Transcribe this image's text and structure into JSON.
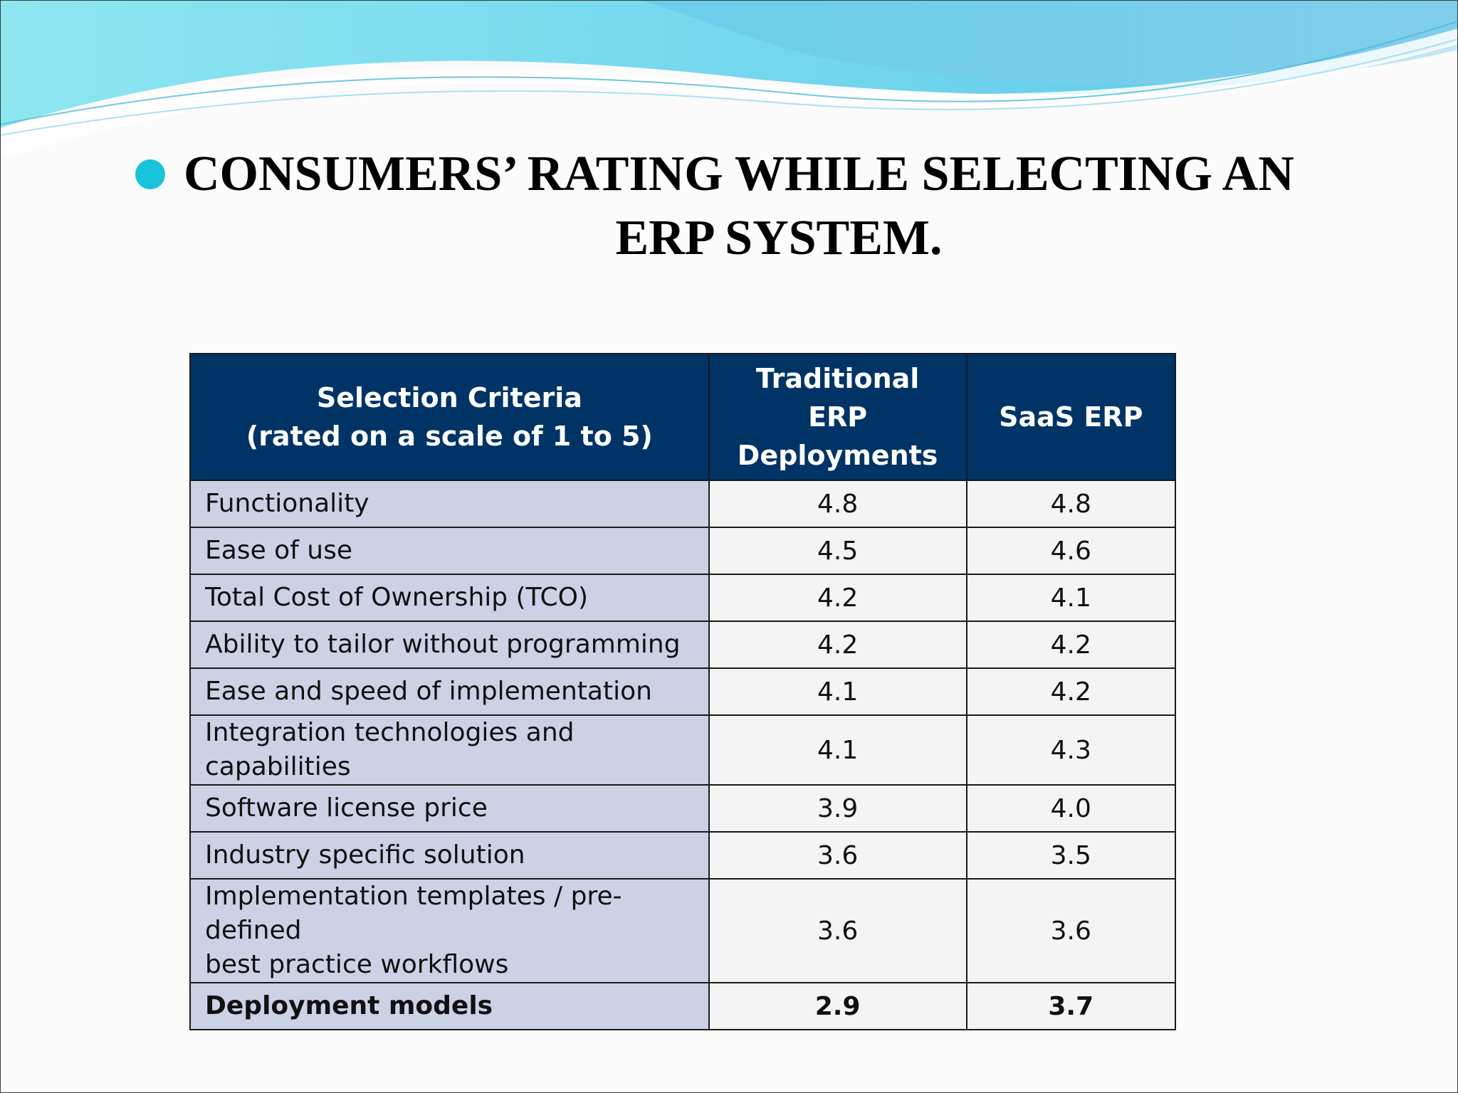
{
  "slide": {
    "title_line1": "CONSUMERS’ RATING WHILE SELECTING AN",
    "title_line2": "ERP SYSTEM.",
    "accent_color": "#19c3da",
    "header_color": "#003466",
    "criteria_cell_color": "#cdd1e6"
  },
  "table": {
    "headers": [
      {
        "line1": "Selection Criteria",
        "line2": "(rated on a scale of 1 to 5)"
      },
      {
        "line1": "Traditional",
        "line2": "ERP",
        "line3": "Deployments"
      },
      {
        "line1": "SaaS ERP"
      }
    ],
    "rows": [
      {
        "criteria": "Functionality",
        "traditional": "4.8",
        "saas": "4.8"
      },
      {
        "criteria": "Ease of use",
        "traditional": "4.5",
        "saas": "4.6"
      },
      {
        "criteria": "Total Cost of Ownership (TCO)",
        "traditional": "4.2",
        "saas": "4.1"
      },
      {
        "criteria": "Ability to tailor without programming",
        "traditional": "4.2",
        "saas": "4.2"
      },
      {
        "criteria": "Ease and speed of implementation",
        "traditional": "4.1",
        "saas": "4.2"
      },
      {
        "criteria": "Integration technologies and capabilities",
        "traditional": "4.1",
        "saas": "4.3"
      },
      {
        "criteria": "Software license price",
        "traditional": "3.9",
        "saas": "4.0"
      },
      {
        "criteria": "Industry specific solution",
        "traditional": "3.6",
        "saas": "3.5"
      },
      {
        "criteria_line1": "Implementation templates / pre-defined",
        "criteria_line2": "best practice workflows",
        "traditional": "3.6",
        "saas": "3.6"
      },
      {
        "criteria": "Deployment models",
        "traditional": "2.9",
        "saas": "3.7"
      }
    ]
  }
}
